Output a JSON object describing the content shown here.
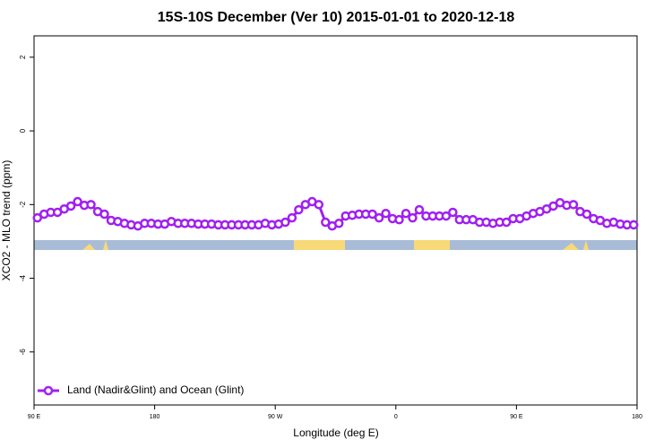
{
  "chart_data": {
    "type": "line",
    "title": "15S-10S December (Ver 10)   2015-01-01 to 2020-12-18",
    "x_label": "Longitude (deg E)",
    "y_label": "XCO2 - MLO trend (ppm)",
    "x": [
      92.5,
      97.5,
      102.5,
      107.5,
      112.5,
      117.5,
      122.5,
      127.5,
      132.5,
      137.5,
      142.5,
      147.5,
      152.5,
      157.5,
      162.5,
      167.5,
      172.5,
      177.5,
      182.5,
      187.5,
      192.5,
      197.5,
      202.5,
      207.5,
      212.5,
      217.5,
      222.5,
      227.5,
      232.5,
      237.5,
      242.5,
      247.5,
      252.5,
      257.5,
      262.5,
      267.5,
      272.5,
      277.5,
      282.5,
      287.5,
      292.5,
      297.5,
      302.5,
      307.5,
      312.5,
      317.5,
      322.5,
      327.5,
      332.5,
      337.5,
      342.5,
      347.5,
      352.5,
      357.5,
      362.5,
      367.5,
      372.5,
      377.5,
      382.5,
      387.5,
      392.5,
      397.5,
      402.5,
      407.5,
      412.5,
      417.5,
      422.5,
      427.5,
      432.5,
      437.5,
      442.5,
      447.5,
      452.5,
      457.5,
      462.5,
      467.5,
      472.5,
      477.5,
      482.5,
      487.5,
      492.5,
      497.5,
      502.5,
      507.5,
      512.5,
      517.5,
      522.5,
      527.5,
      532.5,
      537.5
    ],
    "series": [
      {
        "name": "Land (Nadir&Glint) and Ocean (Glint)",
        "color": "#a020f0",
        "values": [
          -2.36,
          -2.26,
          -2.21,
          -2.21,
          -2.12,
          -2.04,
          -1.92,
          -2.02,
          -2.0,
          -2.19,
          -2.26,
          -2.43,
          -2.46,
          -2.51,
          -2.55,
          -2.58,
          -2.51,
          -2.51,
          -2.53,
          -2.53,
          -2.46,
          -2.51,
          -2.51,
          -2.51,
          -2.53,
          -2.53,
          -2.53,
          -2.55,
          -2.55,
          -2.55,
          -2.55,
          -2.55,
          -2.55,
          -2.55,
          -2.51,
          -2.55,
          -2.53,
          -2.48,
          -2.36,
          -2.14,
          -2.0,
          -1.92,
          -2.0,
          -2.48,
          -2.58,
          -2.51,
          -2.31,
          -2.29,
          -2.26,
          -2.26,
          -2.26,
          -2.36,
          -2.24,
          -2.38,
          -2.41,
          -2.24,
          -2.36,
          -2.14,
          -2.31,
          -2.31,
          -2.31,
          -2.31,
          -2.21,
          -2.41,
          -2.41,
          -2.41,
          -2.48,
          -2.48,
          -2.51,
          -2.48,
          -2.48,
          -2.38,
          -2.38,
          -2.31,
          -2.24,
          -2.19,
          -2.12,
          -2.04,
          -1.95,
          -2.02,
          -2.0,
          -2.19,
          -2.26,
          -2.38,
          -2.43,
          -2.51,
          -2.48,
          -2.53,
          -2.55,
          -2.55
        ]
      }
    ],
    "xlim": [
      90,
      540
    ],
    "xticks": [
      {
        "value": 90,
        "label": "90 E"
      },
      {
        "value": 180,
        "label": "180"
      },
      {
        "value": 270,
        "label": "90 W"
      },
      {
        "value": 360,
        "label": "0"
      },
      {
        "value": 450,
        "label": "90 E"
      },
      {
        "value": 540,
        "label": "180"
      }
    ],
    "ylim": [
      -7.44,
      2.58
    ],
    "yticks": [
      -6,
      -4,
      -2,
      0,
      2
    ],
    "legend": "bottom-left"
  }
}
